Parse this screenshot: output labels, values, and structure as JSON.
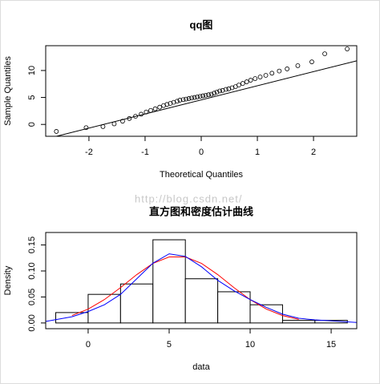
{
  "watermark": "http://blog.csdn.net/",
  "chart_data": [
    {
      "type": "scatter",
      "title": "qq图",
      "xlabel": "Theoretical Quantiles",
      "ylabel": "Sample Quantiles",
      "x": [
        -2.58,
        -2.05,
        -1.75,
        -1.55,
        -1.4,
        -1.28,
        -1.17,
        -1.07,
        -0.98,
        -0.9,
        -0.82,
        -0.74,
        -0.67,
        -0.61,
        -0.55,
        -0.49,
        -0.43,
        -0.38,
        -0.32,
        -0.27,
        -0.22,
        -0.17,
        -0.12,
        -0.07,
        -0.02,
        0.03,
        0.08,
        0.13,
        0.18,
        0.23,
        0.28,
        0.33,
        0.38,
        0.44,
        0.49,
        0.55,
        0.61,
        0.67,
        0.74,
        0.81,
        0.88,
        0.96,
        1.05,
        1.15,
        1.26,
        1.39,
        1.53,
        1.72,
        1.97,
        2.2,
        2.6
      ],
      "y": [
        -1.3,
        -0.6,
        -0.4,
        0.1,
        0.6,
        1.1,
        1.5,
        1.9,
        2.3,
        2.6,
        2.9,
        3.2,
        3.5,
        3.7,
        3.9,
        4.1,
        4.3,
        4.5,
        4.6,
        4.7,
        4.8,
        4.9,
        5.0,
        5.1,
        5.2,
        5.3,
        5.4,
        5.5,
        5.6,
        5.8,
        6.0,
        6.2,
        6.3,
        6.5,
        6.6,
        6.8,
        7.0,
        7.3,
        7.6,
        7.9,
        8.2,
        8.5,
        8.8,
        9.1,
        9.5,
        9.9,
        10.3,
        10.9,
        11.6,
        13.1,
        14.0
      ],
      "color": "#000000",
      "line": {
        "x": [
          -2.77,
          2.77
        ],
        "y": [
          -2.7,
          11.8
        ],
        "color": "#000000"
      },
      "xlim": [
        -2.77,
        2.77
      ],
      "ylim": [
        -2.2,
        14.6
      ],
      "xticks": [
        -2,
        -1,
        0,
        1,
        2
      ],
      "yticks": [
        0,
        5,
        10
      ]
    },
    {
      "type": "histogram",
      "title": "直方图和密度估计曲线",
      "xlabel": "data",
      "ylabel": "Density",
      "bins": [
        -2,
        0,
        2,
        4,
        6,
        8,
        10,
        12,
        14,
        16
      ],
      "values": [
        0.02,
        0.055,
        0.075,
        0.16,
        0.085,
        0.06,
        0.035,
        0.005,
        0.005
      ],
      "color": "#ffffff",
      "curves": [
        {
          "color": "#ff0000",
          "x": [
            -1,
            0,
            1,
            2,
            3,
            4,
            5,
            6,
            7,
            8,
            9,
            10,
            11,
            12,
            13
          ],
          "values": [
            0.0143,
            0.0267,
            0.0449,
            0.068,
            0.093,
            0.1145,
            0.127,
            0.127,
            0.1145,
            0.093,
            0.068,
            0.0449,
            0.0267,
            0.0143,
            0.0069
          ]
        },
        {
          "color": "#0000ff",
          "x": [
            -2.6,
            -1,
            0,
            1,
            2,
            3,
            4,
            5,
            6,
            7,
            8,
            9,
            10,
            11,
            12,
            13,
            14,
            15,
            16.6
          ],
          "values": [
            0.003,
            0.012,
            0.022,
            0.035,
            0.055,
            0.085,
            0.115,
            0.133,
            0.128,
            0.108,
            0.082,
            0.062,
            0.045,
            0.03,
            0.017,
            0.009,
            0.006,
            0.004,
            0.001
          ]
        }
      ],
      "xlim": [
        -2.62,
        16.58
      ],
      "ylim": [
        -0.011,
        0.174
      ],
      "xticks": [
        0,
        5,
        10,
        15
      ],
      "yticks": [
        {
          "value": 0,
          "label": "0.00"
        },
        {
          "value": 0.05,
          "label": "0.05"
        },
        {
          "value": 0.1,
          "label": "0.10"
        },
        {
          "value": 0.15,
          "label": "0.15"
        }
      ]
    }
  ]
}
